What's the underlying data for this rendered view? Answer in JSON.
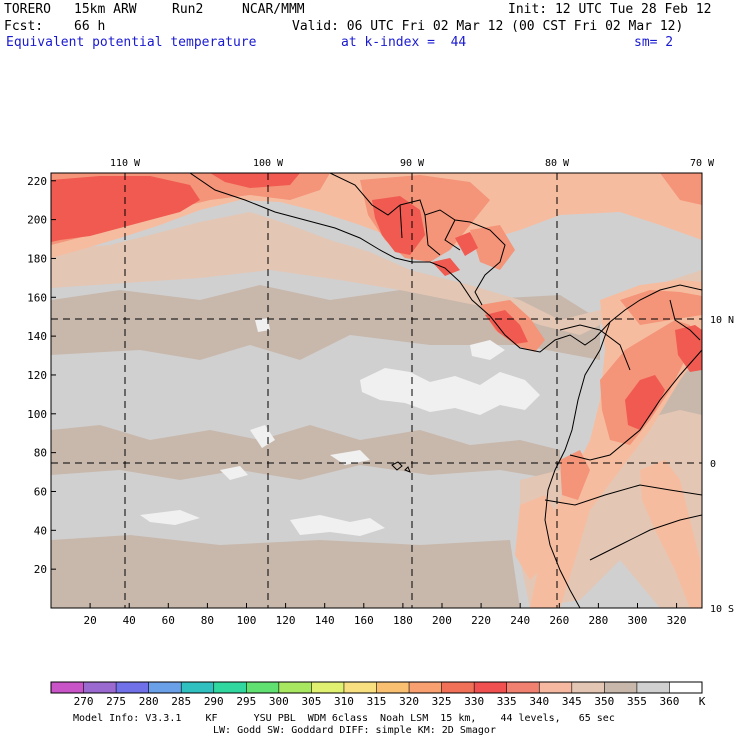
{
  "header": {
    "model": "TORERO",
    "resolution": "15km ARW",
    "run": "Run2",
    "org": "NCAR/MMM",
    "init": "Init: 12 UTC Tue 28 Feb 12",
    "fcst_label": "Fcst:",
    "fcst_value": "66 h",
    "valid": "Valid: 06 UTC Fri 02 Mar 12 (00 CST Fri 02 Mar 12)",
    "field": "Equivalent potential temperature",
    "level": "at k-index =  44",
    "smoothing": "sm= 2"
  },
  "map": {
    "top_labels": [
      "110 W",
      "100 W",
      "90 W",
      "80 W",
      "70 W"
    ],
    "right_labels": [
      "10 N",
      "0",
      "10 S"
    ],
    "x_ticks": [
      "20",
      "40",
      "60",
      "80",
      "100",
      "120",
      "140",
      "160",
      "180",
      "200",
      "220",
      "240",
      "260",
      "280",
      "300",
      "320"
    ],
    "y_ticks": [
      "20",
      "40",
      "60",
      "80",
      "100",
      "120",
      "140",
      "160",
      "180",
      "200",
      "220"
    ],
    "colors": {
      "land_border": "#000000",
      "grid": "#000000",
      "bg_355": "#d0d0d0",
      "low_360": "#f0f0f0",
      "c350": "#c8b8ac",
      "c345": "#e4c6b4",
      "c340": "#f6bca0",
      "c335": "#f49478",
      "c330": "#f05a50"
    }
  },
  "colorbar": {
    "labels": [
      "270",
      "275",
      "280",
      "285",
      "290",
      "295",
      "300",
      "305",
      "310",
      "315",
      "320",
      "325",
      "330",
      "335",
      "340",
      "345",
      "350",
      "355",
      "360"
    ],
    "unit": "K",
    "colors": [
      "#c854c8",
      "#9a6ad0",
      "#7070e8",
      "#6aa0e8",
      "#30c0c0",
      "#30d8a0",
      "#60e070",
      "#a8e860",
      "#e0f070",
      "#f8e080",
      "#f8c070",
      "#f8a070",
      "#f07058",
      "#f05050",
      "#f08070",
      "#f6b8a0",
      "#e4c6b4",
      "#c8b8ac",
      "#d0d0d0",
      "#ffffff"
    ]
  },
  "footer": {
    "line1": "Model Info: V3.3.1    KF      YSU PBL  WDM 6class  Noah LSM  15 km,    44 levels,   65 sec",
    "line2": "LW: Godd SW: Goddard DIFF: simple KM: 2D Smagor"
  }
}
